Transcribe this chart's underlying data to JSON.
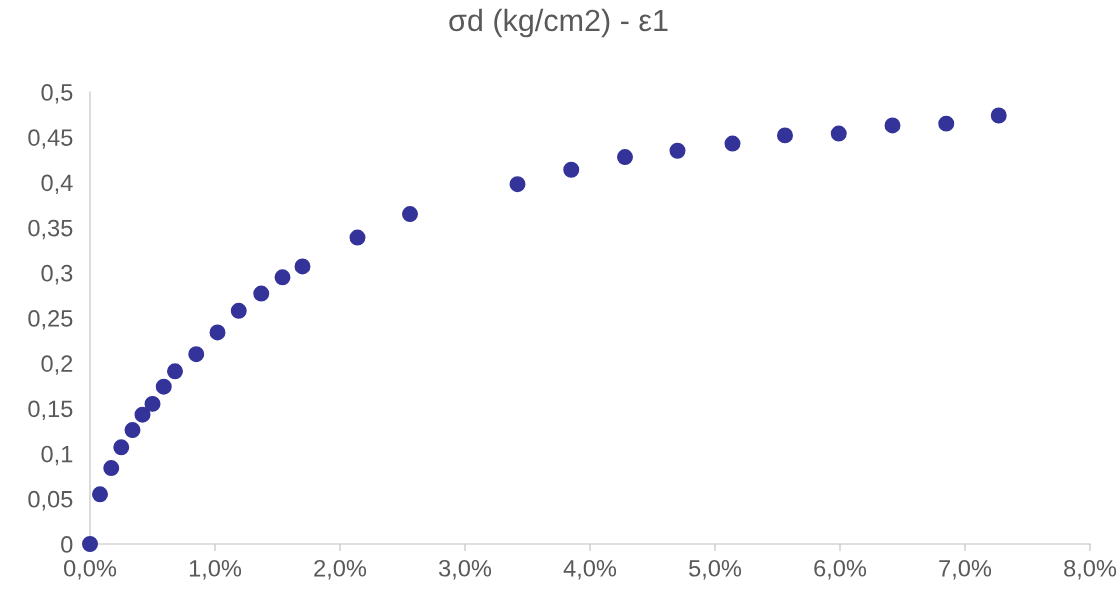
{
  "chart_data": {
    "type": "scatter",
    "title": "σd (kg/cm2) - ε1",
    "x": [
      0,
      0.08,
      0.17,
      0.25,
      0.34,
      0.42,
      0.5,
      0.59,
      0.68,
      0.85,
      1.02,
      1.19,
      1.37,
      1.54,
      1.7,
      2.14,
      2.56,
      3.42,
      3.85,
      4.28,
      4.7,
      5.14,
      5.56,
      5.99,
      6.42,
      6.85,
      7.27
    ],
    "series": [
      {
        "color": "#333399",
        "values": [
          0,
          0.055,
          0.084,
          0.107,
          0.126,
          0.143,
          0.155,
          0.174,
          0.191,
          0.21,
          0.234,
          0.258,
          0.277,
          0.295,
          0.307,
          0.339,
          0.365,
          0.398,
          0.414,
          0.428,
          0.435,
          0.443,
          0.452,
          0.454,
          0.463,
          0.465,
          0.474
        ]
      }
    ],
    "xlim": [
      0,
      8
    ],
    "ylim": [
      0,
      0.5
    ],
    "xticks": [
      {
        "value": 0,
        "label": "0,0%"
      },
      {
        "value": 1,
        "label": "1,0%"
      },
      {
        "value": 2,
        "label": "2,0%"
      },
      {
        "value": 3,
        "label": "3,0%"
      },
      {
        "value": 4,
        "label": "4,0%"
      },
      {
        "value": 5,
        "label": "5,0%"
      },
      {
        "value": 6,
        "label": "6,0%"
      },
      {
        "value": 7,
        "label": "7,0%"
      },
      {
        "value": 8,
        "label": "8,0%"
      }
    ],
    "yticks": [
      0,
      {
        "value": 0.05,
        "label": "0,05"
      },
      {
        "value": 0.1,
        "label": "0,1"
      },
      {
        "value": 0.15,
        "label": "0,15"
      },
      {
        "value": 0.2,
        "label": "0,2"
      },
      {
        "value": 0.25,
        "label": "0,25"
      },
      {
        "value": 0.3,
        "label": "0,3"
      },
      {
        "value": 0.35,
        "label": "0,35"
      },
      {
        "value": 0.4,
        "label": "0,4"
      },
      {
        "value": 0.45,
        "label": "0,45"
      },
      {
        "value": 0.5,
        "label": "0,5"
      }
    ],
    "marker": "circle",
    "grid": false,
    "legend": false
  }
}
